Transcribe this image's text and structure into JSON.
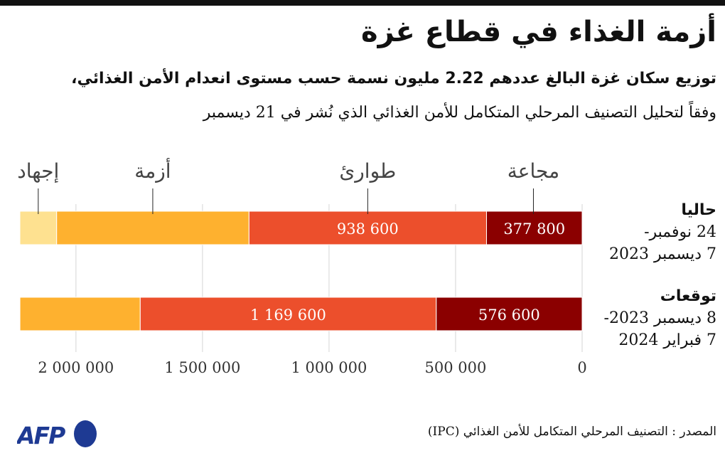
{
  "title": "أزمة الغذاء في قطاع غزة",
  "subtitle_line1": "توزيع سكان غزة البالغ عددهم 2.22 مليون نسمة حسب مستوى انعدام الأمن الغذائي،",
  "subtitle_line2": "وفقاً لتحليل التصنيف المرحلي المتكامل للأمن الغذائي الذي نُشر في 21 ديسمبر",
  "source": "المصدر : التصنيف المرحلي المتكامل للأمن الغذائي (IPC)",
  "logo": "AFP",
  "rows": [
    {
      "title": "حاليا",
      "line2": "24 نوفمبر-",
      "line3": "7 ديسمبر 2023"
    },
    {
      "title": "توقعات",
      "line2": "8 ديسمبر 2023-",
      "line3": "7 فبراير 2024"
    }
  ],
  "chart_data": {
    "type": "bar",
    "orientation": "horizontal",
    "stacked": true,
    "direction": "right-to-left",
    "categories": [
      "حاليا",
      "توقعات"
    ],
    "series": [
      {
        "name": "مجاعة",
        "color": "#8b0000",
        "values": [
          377800,
          576600
        ],
        "labels": [
          "377 800",
          "576 600"
        ]
      },
      {
        "name": "طوارئ",
        "color": "#ec4f2c",
        "values": [
          938600,
          1169600
        ],
        "labels": [
          "938 600",
          "1 169 600"
        ]
      },
      {
        "name": "أزمة",
        "color": "#feb12f",
        "values": [
          760000,
          475000
        ],
        "labels": [
          "",
          ""
        ]
      },
      {
        "name": "إجهاد",
        "color": "#fee190",
        "values": [
          145000,
          0
        ],
        "labels": [
          "",
          ""
        ]
      }
    ],
    "xticks": [
      0,
      500000,
      1000000,
      1500000,
      2000000
    ],
    "xtick_labels": [
      "0",
      "500 000",
      "1 000 000",
      "1 500 000",
      "2 000 000"
    ],
    "xlim": [
      0,
      2300000
    ],
    "grid": true,
    "legend": "top, labels above first bar"
  }
}
